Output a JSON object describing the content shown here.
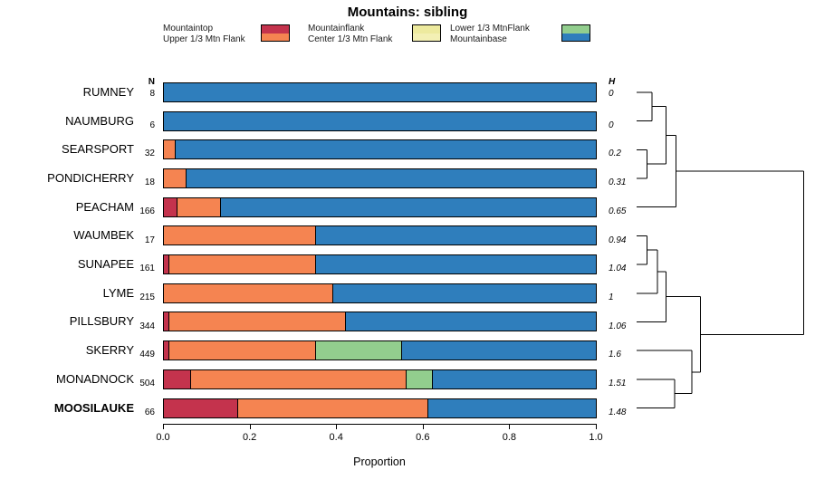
{
  "title": "Mountains: sibling",
  "legend": {
    "columns": [
      {
        "labels": [
          "Mountaintop",
          "Upper 1/3 Mtn Flank"
        ],
        "colors": [
          "#C4334D",
          "#F58451"
        ]
      },
      {
        "labels": [
          "Mountainflank",
          "Center 1/3 Mtn Flank"
        ],
        "colors": [
          "#EDEA9E",
          "#F3F0B4"
        ]
      },
      {
        "labels": [
          "Lower 1/3 MtnFlank",
          "Mountainbase"
        ],
        "colors": [
          "#92CE8E",
          "#2F7EBC"
        ]
      }
    ]
  },
  "chart_data": {
    "type": "bar",
    "orientation": "horizontal",
    "stacked": true,
    "title": "Mountains: sibling",
    "xlabel": "Proportion",
    "xlim": [
      0,
      1
    ],
    "xticks": [
      "0.0",
      "0.2",
      "0.4",
      "0.6",
      "0.8",
      "1.0"
    ],
    "n_header": "N",
    "h_header": "H",
    "segment_keys": [
      "mountaintop",
      "upper-flank",
      "lower-flank",
      "mountainbase"
    ],
    "segment_colors": [
      "#C4334D",
      "#F58451",
      "#92CE8E",
      "#2F7EBC"
    ],
    "rows": [
      {
        "name": "RUMNEY",
        "n": 8,
        "h": "0",
        "bold": false,
        "segments": [
          0,
          0,
          0,
          1.0
        ]
      },
      {
        "name": "NAUMBURG",
        "n": 6,
        "h": "0",
        "bold": false,
        "segments": [
          0,
          0,
          0,
          1.0
        ]
      },
      {
        "name": "SEARSPORT",
        "n": 32,
        "h": "0.2",
        "bold": false,
        "segments": [
          0,
          0.025,
          0,
          0.975
        ]
      },
      {
        "name": "PONDICHERRY",
        "n": 18,
        "h": "0.31",
        "bold": false,
        "segments": [
          0,
          0.05,
          0,
          0.95
        ]
      },
      {
        "name": "PEACHAM",
        "n": 166,
        "h": "0.65",
        "bold": false,
        "segments": [
          0.03,
          0.1,
          0,
          0.87
        ]
      },
      {
        "name": "WAUMBEK",
        "n": 17,
        "h": "0.94",
        "bold": false,
        "segments": [
          0,
          0.35,
          0,
          0.65
        ]
      },
      {
        "name": "SUNAPEE",
        "n": 161,
        "h": "1.04",
        "bold": false,
        "segments": [
          0.01,
          0.34,
          0,
          0.65
        ]
      },
      {
        "name": "LYME",
        "n": 215,
        "h": "1",
        "bold": false,
        "segments": [
          0,
          0.39,
          0,
          0.61
        ]
      },
      {
        "name": "PILLSBURY",
        "n": 344,
        "h": "1.06",
        "bold": false,
        "segments": [
          0.01,
          0.41,
          0,
          0.58
        ]
      },
      {
        "name": "SKERRY",
        "n": 449,
        "h": "1.6",
        "bold": false,
        "segments": [
          0.01,
          0.34,
          0.2,
          0.45
        ]
      },
      {
        "name": "MONADNOCK",
        "n": 504,
        "h": "1.51",
        "bold": false,
        "segments": [
          0.06,
          0.5,
          0.06,
          0.38
        ]
      },
      {
        "name": "MOOSILAUKE",
        "n": 66,
        "h": "1.48",
        "bold": true,
        "segments": [
          0.17,
          0.44,
          0,
          0.39
        ]
      }
    ]
  },
  "dendrogram": {
    "tree": {
      "h": 0.97,
      "children": [
        {
          "h": 0.23,
          "children": [
            {
              "h": 0.17,
              "children": [
                {
                  "h": 0.09,
                  "children": [
                    {
                      "leaf": 0
                    },
                    {
                      "leaf": 1
                    }
                  ]
                },
                {
                  "h": 0.06,
                  "children": [
                    {
                      "leaf": 2
                    },
                    {
                      "leaf": 3
                    }
                  ]
                }
              ]
            },
            {
              "leaf": 4
            }
          ]
        },
        {
          "h": 0.37,
          "children": [
            {
              "h": 0.17,
              "children": [
                {
                  "h": 0.12,
                  "children": [
                    {
                      "h": 0.06,
                      "children": [
                        {
                          "leaf": 5
                        },
                        {
                          "leaf": 6
                        }
                      ]
                    },
                    {
                      "leaf": 7
                    }
                  ]
                },
                {
                  "leaf": 8
                }
              ]
            },
            {
              "h": 0.32,
              "children": [
                {
                  "leaf": 9
                },
                {
                  "h": 0.22,
                  "children": [
                    {
                      "leaf": 10
                    },
                    {
                      "leaf": 11
                    }
                  ]
                }
              ]
            }
          ]
        }
      ]
    }
  }
}
